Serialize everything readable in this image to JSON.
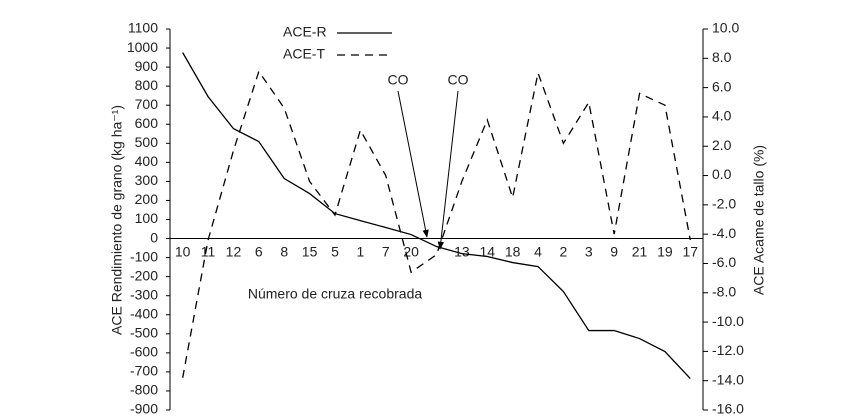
{
  "chart_data": {
    "type": "line",
    "xlabel": "Número de cruza recobrada",
    "ylabel": "ACE  Rendimiento de grano (kg ha⁻¹)",
    "y2label": "ACE  Acame de tallo (%)",
    "categories": [
      "10",
      "11",
      "12",
      "6",
      "8",
      "15",
      "5",
      "1",
      "7",
      "20",
      null,
      "13",
      "14",
      "18",
      "4",
      "2",
      "3",
      "9",
      "21",
      "19",
      "17"
    ],
    "series": [
      {
        "name": "ACE-R",
        "color": "#000000",
        "dash": false,
        "values": [
          976,
          745,
          577,
          509,
          315,
          236,
          131,
          94,
          58,
          21,
          -42,
          -79,
          -94,
          -126,
          -147,
          -278,
          -483,
          -483,
          -525,
          -593,
          -735
        ]
      },
      {
        "name": "ACE-T",
        "color": "#000000",
        "dash": true,
        "axis": "y2",
        "values": [
          -13.8,
          -4.4,
          1.7,
          7.1,
          4.6,
          -0.4,
          -2.7,
          3.1,
          0.0,
          -6.6,
          -5.4,
          -0.4,
          3.8,
          -1.5,
          7.0,
          2.2,
          5.0,
          -4.0,
          5.6,
          4.8,
          -4.4
        ]
      }
    ],
    "annotations": [
      "CO",
      "CO"
    ],
    "ylim": [
      -900,
      1100
    ],
    "yticks": [
      -900,
      -800,
      -700,
      -600,
      -500,
      -400,
      -300,
      -200,
      -100,
      0,
      100,
      200,
      300,
      400,
      500,
      600,
      700,
      800,
      900,
      1000,
      1100
    ],
    "y2lim": [
      -16,
      10
    ],
    "y2ticks": [
      {
        "value": -16,
        "label": "-16.0"
      },
      {
        "value": -14,
        "label": "-14.0"
      },
      {
        "value": -12,
        "label": "-12.0"
      },
      {
        "value": -10,
        "label": "-10.0"
      },
      {
        "value": -8,
        "label": "-8.0"
      },
      {
        "value": -6,
        "label": "-6.0"
      },
      {
        "value": -4,
        "label": "-4.0"
      },
      {
        "value": -2,
        "label": "-2.0"
      },
      {
        "value": 0,
        "label": "0.0"
      },
      {
        "value": 2,
        "label": "2.0"
      },
      {
        "value": 4,
        "label": "4.0"
      },
      {
        "value": 6,
        "label": "6.0"
      },
      {
        "value": 8,
        "label": "8.0"
      },
      {
        "value": 10,
        "label": "10.0"
      }
    ],
    "grid": false
  }
}
